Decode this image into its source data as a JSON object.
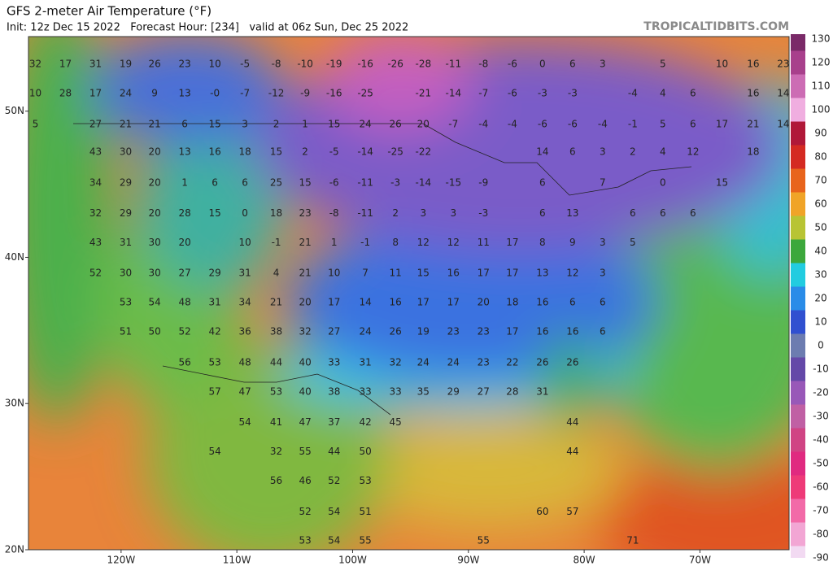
{
  "chart_data": {
    "type": "map",
    "title": "GFS 2-meter Air Temperature (°F)",
    "subtitle": "Init: 12z Dec 15 2022   Forecast Hour: [234]   valid at 06z Sun, Dec 25 2022",
    "source": "TROPICALTIDBITS.COM",
    "xlim": [
      -128,
      -62.3
    ],
    "ylim": [
      20,
      55.1
    ],
    "xticks": [
      {
        "value": -120,
        "label": "120W"
      },
      {
        "value": -110,
        "label": "110W"
      },
      {
        "value": -100,
        "label": "100W"
      },
      {
        "value": -90,
        "label": "90W"
      },
      {
        "value": -80,
        "label": "80W"
      },
      {
        "value": -70,
        "label": "70W"
      }
    ],
    "yticks": [
      {
        "value": 50,
        "label": "50N"
      },
      {
        "value": 40,
        "label": "40N"
      },
      {
        "value": 30,
        "label": "30N"
      },
      {
        "value": 20,
        "label": "20N"
      }
    ],
    "colorbar": {
      "ticks": [
        130,
        120,
        110,
        100,
        90,
        80,
        70,
        60,
        50,
        40,
        30,
        20,
        10,
        0,
        -10,
        -20,
        -30,
        -40,
        -50,
        -60,
        -70,
        -80,
        -90
      ],
      "colors": [
        "#7a2a68",
        "#a8408c",
        "#cc6cb4",
        "#f0aee0",
        "#b01838",
        "#d42a22",
        "#e8641c",
        "#f0a428",
        "#b8c434",
        "#3ca83c",
        "#22cce0",
        "#2a8ce8",
        "#3050d0",
        "#6c7cb0",
        "#6448a8",
        "#9858b8",
        "#c060a4",
        "#d04484",
        "#e02a80",
        "#ee3a78",
        "#f26aa8",
        "#f2a6d4",
        "#f2daf2"
      ]
    },
    "rows": [
      {
        "lat": 53.2,
        "lon": [
          -127.4,
          -124.8,
          -122.2,
          -119.6,
          -117.1,
          -114.5,
          -111.9,
          -109.3,
          -106.6,
          -104.1,
          -101.6,
          -98.9,
          -96.3,
          -93.9,
          -91.3,
          -88.7,
          -86.2,
          -83.6,
          -81.0,
          -78.4,
          -73.2,
          -68.1,
          -65.4,
          -62.8
        ],
        "values": [
          32,
          17,
          31,
          19,
          26,
          23,
          10,
          -5,
          -8,
          -10,
          -19,
          -16,
          -26,
          -28,
          -11,
          -8,
          -6,
          0,
          6,
          3,
          5,
          10,
          16,
          23
        ]
      },
      {
        "lat": 51.2,
        "lon": [
          -127.4,
          -124.8,
          -122.2,
          -119.6,
          -117.1,
          -114.5,
          -111.9,
          -109.3,
          -106.6,
          -104.1,
          -101.6,
          -98.9,
          -93.9,
          -91.3,
          -88.7,
          -86.2,
          -83.6,
          -81.0,
          -75.8,
          -73.2,
          -70.6,
          -65.4,
          -62.8
        ],
        "values": [
          10,
          28,
          17,
          24,
          9,
          13,
          {
            "value": 0,
            "label": "-0"
          },
          -7,
          -12,
          -9,
          -16,
          -25,
          -21,
          -14,
          -7,
          -6,
          -3,
          -3,
          -4,
          4,
          6,
          16,
          14
        ]
      },
      {
        "lat": 49.1,
        "lon": [
          -127.4,
          -122.2,
          -119.6,
          -117.1,
          -114.5,
          -111.9,
          -109.3,
          -106.6,
          -104.1,
          -101.6,
          -98.9,
          -96.3,
          -93.9,
          -91.3,
          -88.7,
          -86.2,
          -83.6,
          -81.0,
          -78.4,
          -75.8,
          -73.2,
          -70.6,
          -68.1,
          -65.4,
          -62.8
        ],
        "values": [
          5,
          27,
          21,
          21,
          6,
          15,
          3,
          2,
          1,
          15,
          24,
          26,
          20,
          -7,
          -4,
          -4,
          -6,
          -6,
          -4,
          -1,
          5,
          6,
          17,
          21,
          14
        ]
      },
      {
        "lat": 47.2,
        "lon": [
          -122.2,
          -119.6,
          -117.1,
          -114.5,
          -111.9,
          -109.3,
          -106.6,
          -104.1,
          -101.6,
          -98.9,
          -96.3,
          -93.9,
          -83.6,
          -81.0,
          -78.4,
          -75.8,
          -73.2,
          -70.6,
          -65.4
        ],
        "values": [
          43,
          30,
          20,
          13,
          16,
          18,
          15,
          2,
          -5,
          -14,
          -25,
          -22,
          14,
          6,
          3,
          2,
          4,
          12,
          18
        ]
      },
      {
        "lat": 45.1,
        "lon": [
          -122.2,
          -119.6,
          -117.1,
          -114.5,
          -111.9,
          -109.3,
          -106.6,
          -104.1,
          -101.6,
          -98.9,
          -96.3,
          -93.9,
          -91.3,
          -88.7,
          -83.6,
          -78.4,
          -73.2,
          -68.1
        ],
        "values": [
          34,
          29,
          20,
          1,
          6,
          6,
          25,
          15,
          -6,
          -11,
          -3,
          -14,
          -15,
          -9,
          6,
          7,
          0,
          15
        ]
      },
      {
        "lat": 43.0,
        "lon": [
          -122.2,
          -119.6,
          -117.1,
          -114.5,
          -111.9,
          -109.3,
          -106.6,
          -104.1,
          -101.6,
          -98.9,
          -96.3,
          -93.9,
          -91.3,
          -88.7,
          -83.6,
          -81.0,
          -75.8,
          -73.2,
          -70.6
        ],
        "values": [
          32,
          29,
          20,
          28,
          15,
          0,
          18,
          23,
          -8,
          -11,
          2,
          3,
          3,
          -3,
          6,
          13,
          6,
          6,
          6
        ]
      },
      {
        "lat": 41.0,
        "lon": [
          -122.2,
          -119.6,
          -117.1,
          -114.5,
          -109.3,
          -106.6,
          -104.1,
          -101.6,
          -98.9,
          -96.3,
          -93.9,
          -91.3,
          -88.7,
          -86.2,
          -83.6,
          -81.0,
          -78.4,
          -75.8
        ],
        "values": [
          43,
          31,
          30,
          20,
          10,
          -1,
          21,
          1,
          -1,
          8,
          12,
          12,
          11,
          17,
          8,
          9,
          3,
          5
        ]
      },
      {
        "lat": 38.9,
        "lon": [
          -122.2,
          -119.6,
          -117.1,
          -114.5,
          -111.9,
          -109.3,
          -106.6,
          -104.1,
          -101.6,
          -98.9,
          -96.3,
          -93.9,
          -91.3,
          -88.7,
          -86.2,
          -83.6,
          -81.0,
          -78.4
        ],
        "values": [
          52,
          30,
          30,
          27,
          29,
          31,
          4,
          21,
          10,
          7,
          11,
          15,
          16,
          17,
          17,
          13,
          12,
          3
        ]
      },
      {
        "lat": 36.9,
        "lon": [
          -119.6,
          -117.1,
          -114.5,
          -111.9,
          -109.3,
          -106.6,
          -104.1,
          -101.6,
          -98.9,
          -96.3,
          -93.9,
          -91.3,
          -88.7,
          -86.2,
          -83.6,
          -81.0,
          -78.4
        ],
        "values": [
          53,
          54,
          48,
          31,
          34,
          21,
          20,
          17,
          14,
          16,
          17,
          17,
          20,
          18,
          16,
          6,
          6
        ]
      },
      {
        "lat": 34.9,
        "lon": [
          -119.6,
          -117.1,
          -114.5,
          -111.9,
          -109.3,
          -106.6,
          -104.1,
          -101.6,
          -98.9,
          -96.3,
          -93.9,
          -91.3,
          -88.7,
          -86.2,
          -83.6,
          -81.0,
          -78.4
        ],
        "values": [
          51,
          50,
          52,
          42,
          36,
          38,
          32,
          27,
          24,
          26,
          19,
          23,
          23,
          17,
          16,
          16,
          6
        ]
      },
      {
        "lat": 32.8,
        "lon": [
          -114.5,
          -111.9,
          -109.3,
          -106.6,
          -104.1,
          -101.6,
          -98.9,
          -96.3,
          -93.9,
          -91.3,
          -88.7,
          -86.2,
          -83.6,
          -81.0
        ],
        "values": [
          56,
          53,
          48,
          44,
          40,
          33,
          31,
          32,
          24,
          24,
          23,
          22,
          26,
          26
        ]
      },
      {
        "lat": 30.8,
        "lon": [
          -111.9,
          -109.3,
          -106.6,
          -104.1,
          -101.6,
          -98.9,
          -96.3,
          -93.9,
          -91.3,
          -88.7,
          -86.2,
          -83.6
        ],
        "values": [
          57,
          47,
          53,
          40,
          38,
          33,
          33,
          35,
          29,
          27,
          28,
          31
        ]
      },
      {
        "lat": 28.7,
        "lon": [
          -109.3,
          -106.6,
          -104.1,
          -101.6,
          -98.9,
          -96.3,
          -81.0
        ],
        "values": [
          54,
          41,
          47,
          37,
          42,
          45,
          44
        ]
      },
      {
        "lat": 26.7,
        "lon": [
          -111.9,
          -106.6,
          -104.1,
          -101.6,
          -98.9,
          -81.0
        ],
        "values": [
          54,
          32,
          55,
          44,
          50,
          44
        ]
      },
      {
        "lat": 24.7,
        "lon": [
          -106.6,
          -104.1,
          -101.6,
          -98.9
        ],
        "values": [
          56,
          46,
          52,
          53
        ]
      },
      {
        "lat": 22.6,
        "lon": [
          -104.1,
          -101.6,
          -98.9,
          -83.6,
          -81.0
        ],
        "values": [
          52,
          54,
          51,
          60,
          57
        ]
      },
      {
        "lat": 20.6,
        "lon": [
          -104.1,
          -101.6,
          -98.9,
          -88.7,
          -75.8
        ],
        "values": [
          53,
          54,
          55,
          55,
          71
        ]
      }
    ]
  }
}
